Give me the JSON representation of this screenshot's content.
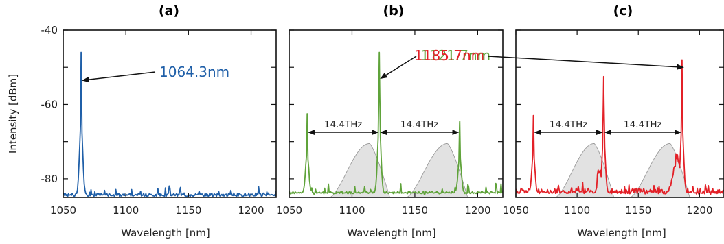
{
  "chart_data": [
    {
      "type": "line",
      "panel_label": "(a)",
      "xlabel": "Wavelength [nm]",
      "ylabel": "Intensity [dBm]",
      "xlim": [
        1050,
        1220
      ],
      "ylim": [
        -85,
        -40
      ],
      "xticks": [
        1050,
        1100,
        1150,
        1200
      ],
      "yticks": [
        -40,
        -60,
        -80
      ],
      "grid": false,
      "series": [
        {
          "color": "#1f5fa8",
          "noise_floor": -84.5,
          "peaks": [
            {
              "x": 1064.3,
              "y": -46
            }
          ]
        }
      ],
      "annotations": [
        {
          "text": "1064.3nm",
          "color": "#1f5fa8",
          "points_to": {
            "x": 1064.3,
            "y": -53.5
          }
        }
      ]
    },
    {
      "type": "line",
      "panel_label": "(b)",
      "xlabel": "Wavelength [nm]",
      "xlim": [
        1050,
        1220
      ],
      "ylim": [
        -85,
        -40
      ],
      "xticks": [
        1050,
        1100,
        1150,
        1200
      ],
      "grid": false,
      "series": [
        {
          "color": "#5fa33a",
          "noise_floor": -84,
          "peaks": [
            {
              "x": 1064.3,
              "y": -62.5
            },
            {
              "x": 1121.7,
              "y": -46
            },
            {
              "x": 1185.7,
              "y": -64.5
            }
          ]
        },
        {
          "color": "#e2e2e2",
          "role": "shaded gain profile",
          "humps": [
            {
              "start": 1082,
              "peak_x": 1114,
              "peak_y": -70.5,
              "end": 1130
            },
            {
              "start": 1143,
              "peak_x": 1176,
              "peak_y": -70.5,
              "end": 1192
            }
          ]
        }
      ],
      "annotations": [
        {
          "text": "1121.7nm",
          "color": "#5fa33a",
          "points_to": {
            "x": 1121.7,
            "y": -53
          }
        },
        {
          "text": "14.4THz",
          "color": "#222222",
          "arrow_from": 1064.3,
          "arrow_to": 1121.7,
          "y": -67.5
        },
        {
          "text": "14.4THz",
          "color": "#222222",
          "arrow_from": 1121.7,
          "arrow_to": 1185.7,
          "y": -67.5
        }
      ]
    },
    {
      "type": "line",
      "panel_label": "(c)",
      "xlabel": "Wavelength [nm]",
      "xlim": [
        1050,
        1220
      ],
      "ylim": [
        -85,
        -40
      ],
      "xticks": [
        1050,
        1100,
        1150,
        1200
      ],
      "grid": false,
      "series": [
        {
          "color": "#e32027",
          "noise_floor": -84,
          "peaks": [
            {
              "x": 1064.3,
              "y": -63
            },
            {
              "x": 1121.7,
              "y": -52.5
            },
            {
              "x": 1185.7,
              "y": -48
            }
          ]
        },
        {
          "color": "#e2e2e2",
          "role": "shaded gain profile",
          "humps": [
            {
              "start": 1082,
              "peak_x": 1114,
              "peak_y": -70.5,
              "end": 1130
            },
            {
              "start": 1143,
              "peak_x": 1176,
              "peak_y": -70.5,
              "end": 1192
            }
          ]
        }
      ],
      "annotations": [
        {
          "text": "1185.7nm",
          "color": "#e32027",
          "points_to": {
            "x": 1185.7,
            "y": -50
          }
        },
        {
          "text": "14.4THz",
          "color": "#222222",
          "arrow_from": 1064.3,
          "arrow_to": 1121.7,
          "y": -67.5
        },
        {
          "text": "14.4THz",
          "color": "#222222",
          "arrow_from": 1121.7,
          "arrow_to": 1185.7,
          "y": -67.5
        }
      ]
    }
  ]
}
